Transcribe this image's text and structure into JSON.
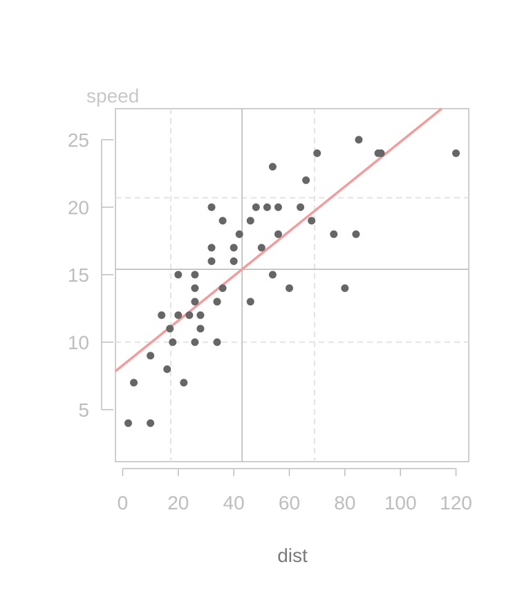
{
  "chart_data": {
    "type": "scatter",
    "xlabel": "dist",
    "ylabel": "speed",
    "xlim": [
      -2.6,
      124.6
    ],
    "ylim": [
      1.15,
      27.3
    ],
    "x_ticks": [
      "0",
      "20",
      "40",
      "60",
      "80",
      "100",
      "120"
    ],
    "y_ticks": [
      "5",
      "10",
      "15",
      "20",
      "25"
    ],
    "x_tick_values": [
      0,
      20,
      40,
      60,
      80,
      100,
      120
    ],
    "y_tick_values": [
      5,
      10,
      15,
      20,
      25
    ],
    "grid": {
      "dashed_x": [
        17.3,
        69.1
      ],
      "dashed_y": [
        10,
        20.7
      ],
      "solid_x": 42.98,
      "solid_y": 15.4
    },
    "regression_line": {
      "intercept": 8.284,
      "slope": 0.1656,
      "color": "#f59b9b"
    },
    "point_color": "#666666",
    "points": [
      {
        "x": 2,
        "y": 4
      },
      {
        "x": 10,
        "y": 4
      },
      {
        "x": 4,
        "y": 7
      },
      {
        "x": 22,
        "y": 7
      },
      {
        "x": 16,
        "y": 8
      },
      {
        "x": 10,
        "y": 9
      },
      {
        "x": 18,
        "y": 10
      },
      {
        "x": 26,
        "y": 10
      },
      {
        "x": 34,
        "y": 10
      },
      {
        "x": 17,
        "y": 11
      },
      {
        "x": 28,
        "y": 11
      },
      {
        "x": 14,
        "y": 12
      },
      {
        "x": 20,
        "y": 12
      },
      {
        "x": 24,
        "y": 12
      },
      {
        "x": 28,
        "y": 12
      },
      {
        "x": 26,
        "y": 13
      },
      {
        "x": 34,
        "y": 13
      },
      {
        "x": 34,
        "y": 13
      },
      {
        "x": 46,
        "y": 13
      },
      {
        "x": 26,
        "y": 14
      },
      {
        "x": 36,
        "y": 14
      },
      {
        "x": 60,
        "y": 14
      },
      {
        "x": 80,
        "y": 14
      },
      {
        "x": 20,
        "y": 15
      },
      {
        "x": 26,
        "y": 15
      },
      {
        "x": 54,
        "y": 15
      },
      {
        "x": 32,
        "y": 16
      },
      {
        "x": 40,
        "y": 16
      },
      {
        "x": 32,
        "y": 17
      },
      {
        "x": 40,
        "y": 17
      },
      {
        "x": 50,
        "y": 17
      },
      {
        "x": 42,
        "y": 18
      },
      {
        "x": 56,
        "y": 18
      },
      {
        "x": 76,
        "y": 18
      },
      {
        "x": 84,
        "y": 18
      },
      {
        "x": 36,
        "y": 19
      },
      {
        "x": 46,
        "y": 19
      },
      {
        "x": 68,
        "y": 19
      },
      {
        "x": 32,
        "y": 20
      },
      {
        "x": 48,
        "y": 20
      },
      {
        "x": 52,
        "y": 20
      },
      {
        "x": 56,
        "y": 20
      },
      {
        "x": 64,
        "y": 20
      },
      {
        "x": 66,
        "y": 22
      },
      {
        "x": 54,
        "y": 23
      },
      {
        "x": 70,
        "y": 24
      },
      {
        "x": 92,
        "y": 24
      },
      {
        "x": 93,
        "y": 24
      },
      {
        "x": 120,
        "y": 24
      },
      {
        "x": 85,
        "y": 25
      }
    ]
  }
}
